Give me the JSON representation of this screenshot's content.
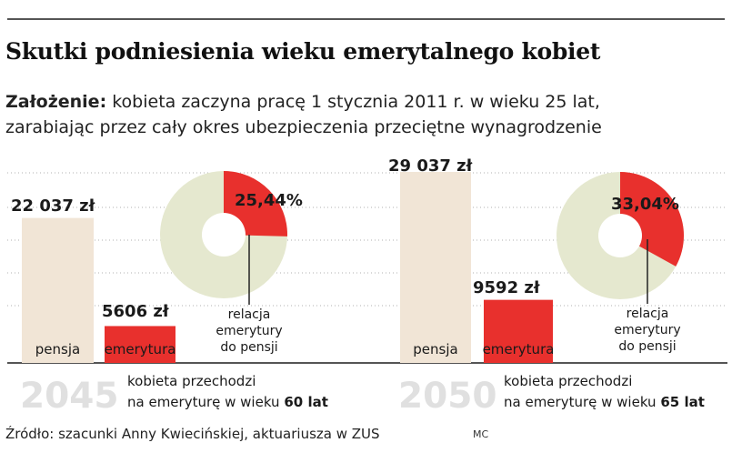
{
  "title": "Skutki podniesienia wieku emerytalnego kobiet",
  "assumption": {
    "label": "Założenie:",
    "line1": "kobieta zaczyna pracę 1 stycznia 2011 r. w wieku 25 lat,",
    "line2": "zarabiając przez cały okres ubezpieczenia przeciętne wynagrodzenie"
  },
  "source": "Źródło: szacunki Anny Kwiecińskiej, aktuariusza w ZUS",
  "credit": "MC",
  "colors": {
    "pensja": "#f1e5d6",
    "emerytura": "#e8302d",
    "donut_bg": "#e5e8cf",
    "grid": "#b0b0b0",
    "year": "#e0e0e0"
  },
  "chart_data": [
    {
      "type": "bar",
      "categories": [
        "pensja",
        "emerytura"
      ],
      "values": [
        22037,
        5606
      ],
      "value_labels": [
        "22 037 zł",
        "5606 zł"
      ],
      "year": "2045",
      "desc_line1": "kobieta przechodzi",
      "desc_line2_prefix": "na emeryturę w wieku ",
      "desc_line2_bold": "60 lat",
      "ratio": {
        "type": "pie",
        "value": 25.44,
        "label": "25,44%",
        "note": [
          "relacja",
          "emerytury",
          "do pensji"
        ]
      }
    },
    {
      "type": "bar",
      "categories": [
        "pensja",
        "emerytura"
      ],
      "values": [
        29037,
        9592
      ],
      "value_labels": [
        "29 037 zł",
        "9592 zł"
      ],
      "year": "2050",
      "desc_line1": "kobieta przechodzi",
      "desc_line2_prefix": "na emeryturę w wieku ",
      "desc_line2_bold": "65 lat",
      "ratio": {
        "type": "pie",
        "value": 33.04,
        "label": "33,04%",
        "note": [
          "relacja",
          "emerytury",
          "do pensji"
        ]
      }
    }
  ]
}
